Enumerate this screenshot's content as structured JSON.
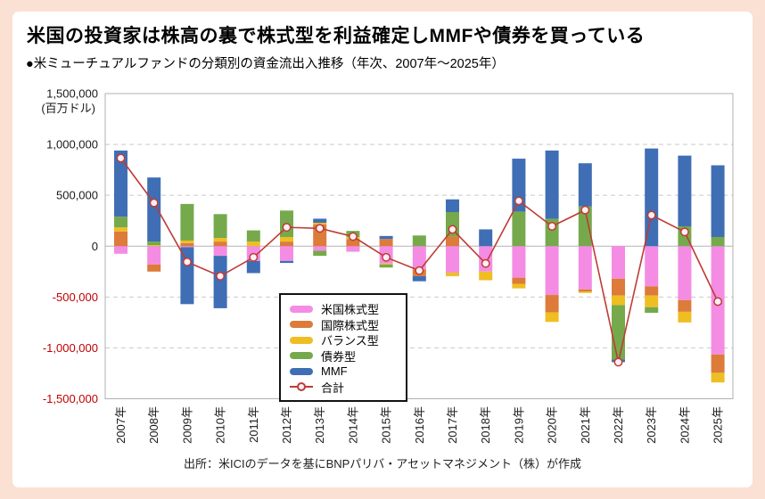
{
  "header": {
    "title": "米国の投資家は株高の裏で株式型を利益確定しMMFや債券を買っている",
    "subtitle": "●米ミューチュアルファンドの分類別の資金流出入推移（年次、2007年～2025年）"
  },
  "footer": {
    "source": "出所：米ICIのデータを基にBNPパリバ・アセットマネジメント（株）が作成"
  },
  "colors": {
    "page_frame": "#fae1d4",
    "card_bg": "#ffffff",
    "gridline": "#c9c9c9",
    "zero_line": "#b3b3b3",
    "plot_border": "#b0b0b0",
    "positive_tick": "#1a1a1a",
    "negative_tick": "#c00000",
    "axis_label": "#1a1a1a"
  },
  "chart_data": {
    "type": "bar",
    "subtype": "stacked-bar-with-total-line",
    "title": "米ミューチュアルファンドの分類別の資金流出入推移（年次、2007年～2025年）",
    "unit_label": "(百万ドル)",
    "ylim": [
      -1500000,
      1500000
    ],
    "ytick_interval": 500000,
    "grid": "dashed-horizontal",
    "legend_position": "inside-lower-middle",
    "categories": [
      "2007年",
      "2008年",
      "2009年",
      "2010年",
      "2011年",
      "2012年",
      "2013年",
      "2014年",
      "2015年",
      "2016年",
      "2017年",
      "2018年",
      "2019年",
      "2020年",
      "2021年",
      "2022年",
      "2023年",
      "2024年",
      "2025年"
    ],
    "series": [
      {
        "name": "米国株式型",
        "color": "#f48ce4",
        "values": [
          -75000,
          -180000,
          -10000,
          -95000,
          -145000,
          -145000,
          -45000,
          -55000,
          -170000,
          -230000,
          -260000,
          -250000,
          -310000,
          -480000,
          -425000,
          -320000,
          -395000,
          -530000,
          -1065000
        ]
      },
      {
        "name": "国際株式型",
        "color": "#dc7b3a",
        "values": [
          145000,
          -70000,
          30000,
          45000,
          0,
          45000,
          215000,
          70000,
          70000,
          -65000,
          95000,
          0,
          -60000,
          -170000,
          -20000,
          -165000,
          -90000,
          -115000,
          -180000
        ]
      },
      {
        "name": "バランス型",
        "color": "#efbe23",
        "values": [
          40000,
          10000,
          25000,
          35000,
          45000,
          45000,
          15000,
          20000,
          -10000,
          0,
          -35000,
          -85000,
          -45000,
          -95000,
          -15000,
          -95000,
          -115000,
          -105000,
          -95000
        ]
      },
      {
        "name": "債券型",
        "color": "#76a94c",
        "values": [
          105000,
          35000,
          360000,
          235000,
          110000,
          260000,
          -50000,
          60000,
          -30000,
          105000,
          240000,
          0,
          340000,
          270000,
          390000,
          -535000,
          -55000,
          195000,
          90000
        ]
      },
      {
        "name": "MMF",
        "color": "#3f6eb5",
        "values": [
          650000,
          630000,
          -560000,
          -515000,
          -120000,
          -20000,
          40000,
          0,
          30000,
          -50000,
          125000,
          165000,
          520000,
          670000,
          425000,
          -25000,
          960000,
          695000,
          705000
        ]
      }
    ],
    "line_series": {
      "name": "合計",
      "color": "#be3c36",
      "marker_fill": "#fdeff5",
      "values": [
        865000,
        425000,
        -155000,
        -295000,
        -110000,
        185000,
        175000,
        95000,
        -110000,
        -240000,
        165000,
        -170000,
        445000,
        195000,
        355000,
        -1140000,
        305000,
        140000,
        -545000
      ]
    }
  }
}
